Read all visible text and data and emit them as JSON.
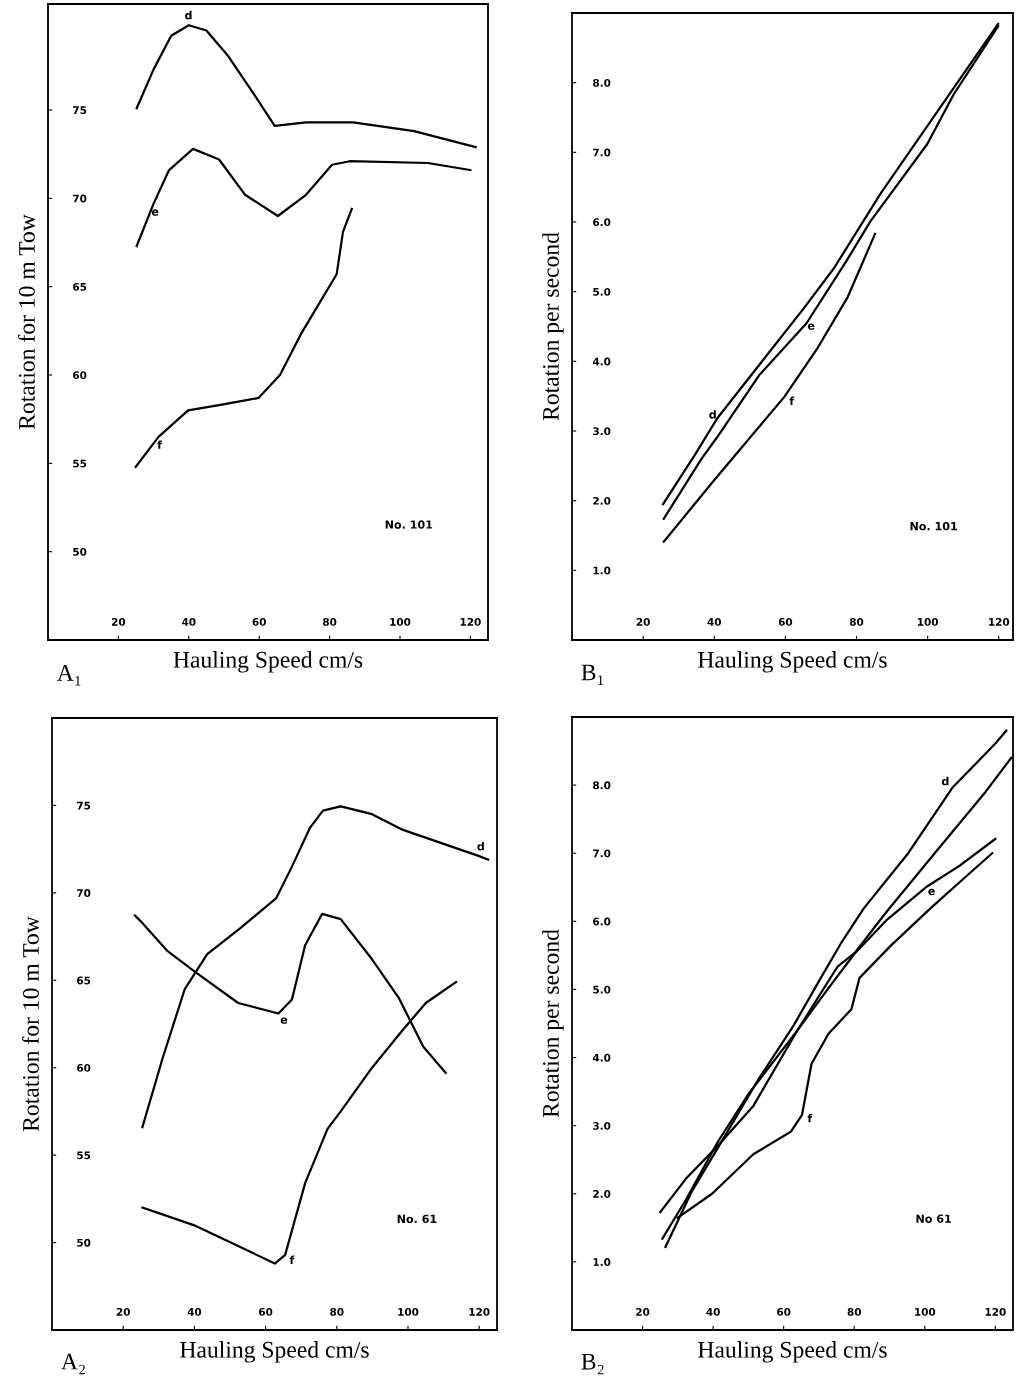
{
  "chart_data": [
    {
      "type": "line",
      "xlabel": "Hauling Speed cm/s",
      "ylabel": "Rotation for 10 m Tow",
      "xlim": [
        0,
        125
      ],
      "ylim": [
        45,
        81
      ],
      "xticks": [
        20,
        40,
        60,
        80,
        100,
        120
      ],
      "yticks": [
        50,
        55,
        60,
        65,
        70,
        75
      ],
      "grid": false,
      "legend": false,
      "marker": "none",
      "line_style": "solid",
      "series": [
        {
          "name": "d",
          "color": "#000000",
          "x": [
            25.2,
            30,
            35,
            40,
            45,
            51,
            58.5,
            64.4,
            73.3,
            86.7,
            104,
            119.6,
            121.5
          ],
          "values": [
            75.1,
            77.3,
            79.2,
            79.8,
            79.5,
            78.1,
            75.9,
            74.1,
            74.3,
            74.3,
            73.8,
            73.0,
            72.9
          ]
        },
        {
          "name": "e",
          "color": "#000000",
          "x": [
            25.2,
            30,
            34.4,
            41.2,
            48.6,
            56,
            65.3,
            73.3,
            80.7,
            85.7,
            107.9,
            120
          ],
          "values": [
            67.3,
            69.7,
            71.6,
            72.8,
            72.2,
            70.2,
            69.0,
            70.2,
            71.9,
            72.1,
            72.0,
            71.6
          ]
        },
        {
          "name": "f",
          "color": "#000000",
          "x": [
            24.9,
            31.4,
            39.8,
            48.6,
            59.8,
            65.9,
            72.1,
            82.0,
            83.8,
            86.3
          ],
          "values": [
            54.8,
            56.5,
            58.0,
            58.3,
            58.7,
            60.0,
            62.4,
            65.7,
            68.1,
            69.4
          ]
        }
      ],
      "annotations": [
        "A₁",
        "No. 101"
      ]
    },
    {
      "type": "line",
      "xlabel": "Hauling Speed cm/s",
      "ylabel": "Rotation per second",
      "xlim": [
        0,
        124
      ],
      "ylim": [
        0,
        9
      ],
      "xticks": [
        20,
        40,
        60,
        80,
        100,
        120
      ],
      "yticks": [
        {
          "value": 1,
          "label": "1.0"
        },
        {
          "value": 2,
          "label": "2.0"
        },
        {
          "value": 3,
          "label": "3.0"
        },
        {
          "value": 4,
          "label": "4.0"
        },
        {
          "value": 5,
          "label": "5.0"
        },
        {
          "value": 6,
          "label": "6.0"
        },
        {
          "value": 7,
          "label": "7.0"
        },
        {
          "value": 8,
          "label": "8.0"
        }
      ],
      "grid": false,
      "legend": false,
      "marker": "none",
      "line_style": "solid",
      "series": [
        {
          "name": "d",
          "color": "#000000",
          "x": [
            25.6,
            34.6,
            40.8,
            65,
            73.7,
            86.8,
            107.3,
            119.8
          ],
          "values": [
            1.95,
            2.66,
            3.18,
            4.75,
            5.34,
            6.41,
            7.92,
            8.84
          ]
        },
        {
          "name": "e",
          "color": "#000000",
          "x": [
            25.8,
            36.4,
            40.8,
            52.6,
            66,
            77.4,
            83.9,
            99.9,
            107.3,
            119.8
          ],
          "values": [
            1.74,
            2.6,
            2.91,
            3.8,
            4.55,
            5.46,
            6.01,
            7.12,
            7.83,
            8.81
          ]
        },
        {
          "name": "f",
          "color": "#000000",
          "x": [
            25.8,
            39.9,
            59.7,
            68.8,
            77.4,
            82,
            85.2
          ],
          "values": [
            1.41,
            2.29,
            3.49,
            4.17,
            4.91,
            5.45,
            5.83
          ]
        }
      ],
      "annotations": [
        "B₁",
        "No. 101"
      ]
    },
    {
      "type": "line",
      "xlabel": "Hauling Speed cm/s",
      "ylabel": "Rotation for 10 m Tow",
      "xlim": [
        0,
        125
      ],
      "ylim": [
        45,
        80
      ],
      "xticks": [
        20,
        40,
        60,
        80,
        100,
        120
      ],
      "yticks": [
        50,
        55,
        60,
        65,
        70,
        75
      ],
      "grid": false,
      "legend": false,
      "marker": "none",
      "line_style": "solid",
      "series": [
        {
          "name": "d",
          "color": "#000000",
          "x": [
            25.4,
            31,
            37.3,
            43.6,
            53,
            63,
            67.4,
            72.4,
            76.1,
            81.1,
            89.9,
            98.6,
            120,
            122.5
          ],
          "values": [
            56.6,
            60.5,
            64.5,
            66.5,
            68.0,
            69.7,
            71.5,
            73.7,
            74.7,
            74.95,
            74.5,
            73.6,
            72.1,
            71.9
          ]
        },
        {
          "name": "e",
          "color": "#000000",
          "x": [
            23.3,
            24.8,
            32.3,
            40.1,
            52.3,
            63.6,
            67.4,
            71.1,
            75.9,
            81.1,
            89.9,
            97.4,
            104.3,
            110.6
          ],
          "values": [
            68.7,
            68.4,
            66.7,
            65.5,
            63.7,
            63.1,
            63.9,
            67.0,
            68.8,
            68.5,
            66.2,
            64.0,
            61.2,
            59.7
          ]
        },
        {
          "name": "f",
          "color": "#000000",
          "x": [
            25.4,
            39.8,
            52.3,
            62.6,
            65.5,
            71.1,
            77.4,
            81.1,
            89.9,
            98.7,
            105,
            113.5
          ],
          "values": [
            52.0,
            51.0,
            49.8,
            48.8,
            49.3,
            53.4,
            56.5,
            57.5,
            60.0,
            62.2,
            63.7,
            64.9
          ]
        }
      ],
      "annotations": [
        "A₂",
        "No. 61"
      ]
    },
    {
      "type": "line",
      "xlabel": "Hauling Speed cm/s",
      "ylabel": "Rotation per second",
      "xlim": [
        0,
        125
      ],
      "ylim": [
        0,
        9
      ],
      "xticks": [
        20,
        40,
        60,
        80,
        100,
        120
      ],
      "yticks": [
        {
          "value": 1,
          "label": "1.0"
        },
        {
          "value": 2,
          "label": "2.0"
        },
        {
          "value": 3,
          "label": "3.0"
        },
        {
          "value": 4,
          "label": "4.0"
        },
        {
          "value": 5,
          "label": "5.0"
        },
        {
          "value": 6,
          "label": "6.0"
        },
        {
          "value": 7,
          "label": "7.0"
        },
        {
          "value": 8,
          "label": "8.0"
        }
      ],
      "grid": false,
      "legend": false,
      "marker": "none",
      "line_style": "solid",
      "series": [
        {
          "name": "d",
          "color": "#000000",
          "x": [
            26.5,
            33.8,
            41.3,
            52.6,
            62.7,
            70.2,
            76.5,
            82.7,
            95.3,
            107.8,
            120,
            123.1
          ],
          "values": [
            1.22,
            2.02,
            2.67,
            3.66,
            4.46,
            5.14,
            5.7,
            6.19,
            7.0,
            7.96,
            8.61,
            8.8
          ]
        },
        {
          "color": "#000000",
          "x": [
            25.6,
            32.5,
            41.3,
            50.1,
            63.9,
            75.2,
            80.2,
            89,
            102.8,
            117.2,
            124.5
          ],
          "values": [
            1.34,
            1.93,
            2.76,
            3.47,
            4.4,
            5.33,
            5.54,
            6.13,
            7.0,
            7.9,
            8.4
          ]
        },
        {
          "name": "e",
          "color": "#000000",
          "x": [
            25,
            32.6,
            40.7,
            51.4,
            63.9,
            72.7,
            80,
            89,
            100.3,
            109.7,
            120
          ],
          "values": [
            1.73,
            2.24,
            2.67,
            3.29,
            4.4,
            5.02,
            5.52,
            6.01,
            6.5,
            6.81,
            7.21
          ]
        },
        {
          "name": "f",
          "color": "#000000",
          "x": [
            30,
            39.7,
            51.4,
            62,
            65.2,
            67.9,
            72.7,
            79.2,
            81.5,
            90.3,
            101.6,
            110.4,
            119.1
          ],
          "values": [
            1.65,
            2.0,
            2.58,
            2.91,
            3.16,
            3.91,
            4.35,
            4.71,
            5.17,
            5.64,
            6.19,
            6.6,
            7.0
          ]
        }
      ],
      "annotations": [
        "B₂",
        "No 61"
      ]
    }
  ]
}
